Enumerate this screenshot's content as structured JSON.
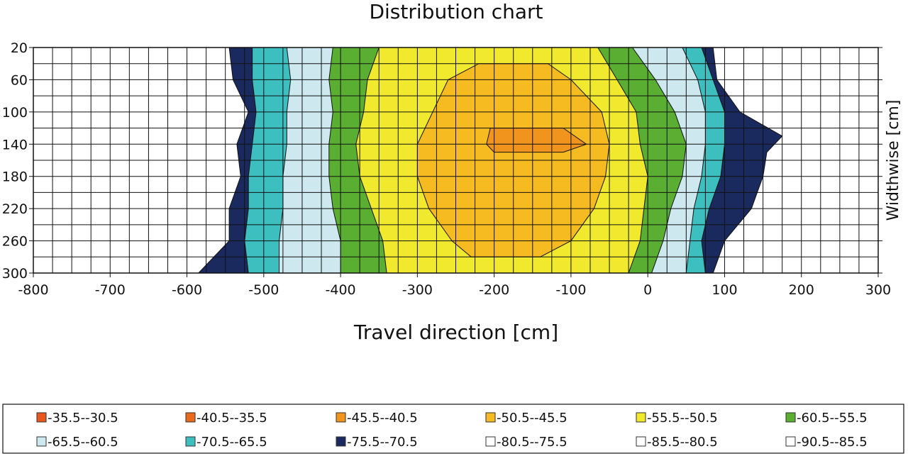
{
  "chart_data": {
    "type": "heatmap",
    "title": "Distribution chart",
    "xlabel": "Travel direction [cm]",
    "ylabel": "Widthwise [cm]",
    "xlim": [
      -800,
      300
    ],
    "ylim": [
      20,
      300
    ],
    "y_inverted": true,
    "grid": true,
    "x_ticks": [
      "-800",
      "-700",
      "-600",
      "-500",
      "-400",
      "-300",
      "-200",
      "-100",
      "0",
      "100",
      "200",
      "300"
    ],
    "y_ticks": [
      "20",
      "60",
      "100",
      "140",
      "180",
      "220",
      "260",
      "300"
    ],
    "x_tick_values": [
      -800,
      -700,
      -600,
      -500,
      -400,
      -300,
      -200,
      -100,
      0,
      100,
      200,
      300
    ],
    "y_tick_values": [
      20,
      60,
      100,
      140,
      180,
      220,
      260,
      300
    ],
    "bands": [
      {
        "label": "-90.5--85.5",
        "color": "#ffffff",
        "left": [
          [
            20,
            -800
          ],
          [
            300,
            -800
          ]
        ],
        "right": [
          [
            20,
            300
          ],
          [
            300,
            300
          ]
        ]
      },
      {
        "label": "-75.5--70.5",
        "color": "#1b2a5e",
        "left": [
          [
            20,
            -545
          ],
          [
            60,
            -540
          ],
          [
            100,
            -520
          ],
          [
            140,
            -535
          ],
          [
            180,
            -530
          ],
          [
            220,
            -545
          ],
          [
            260,
            -545
          ],
          [
            300,
            -585
          ]
        ],
        "right": [
          [
            20,
            85
          ],
          [
            60,
            90
          ],
          [
            100,
            120
          ],
          [
            130,
            175
          ],
          [
            150,
            155
          ],
          [
            180,
            150
          ],
          [
            220,
            135
          ],
          [
            260,
            100
          ],
          [
            300,
            85
          ]
        ]
      },
      {
        "label": "-70.5--65.5",
        "color": "#3dbfbf",
        "left": [
          [
            20,
            -515
          ],
          [
            60,
            -515
          ],
          [
            100,
            -510
          ],
          [
            140,
            -515
          ],
          [
            180,
            -520
          ],
          [
            220,
            -520
          ],
          [
            260,
            -525
          ],
          [
            300,
            -520
          ]
        ],
        "right": [
          [
            20,
            70
          ],
          [
            60,
            85
          ],
          [
            100,
            100
          ],
          [
            140,
            100
          ],
          [
            180,
            95
          ],
          [
            220,
            80
          ],
          [
            260,
            70
          ],
          [
            300,
            75
          ]
        ]
      },
      {
        "label": "-65.5--60.5",
        "color": "#cde9ef",
        "left": [
          [
            20,
            -470
          ],
          [
            60,
            -465
          ],
          [
            100,
            -470
          ],
          [
            140,
            -470
          ],
          [
            180,
            -475
          ],
          [
            220,
            -475
          ],
          [
            260,
            -480
          ],
          [
            300,
            -480
          ]
        ],
        "right": [
          [
            20,
            45
          ],
          [
            60,
            65
          ],
          [
            100,
            75
          ],
          [
            140,
            75
          ],
          [
            180,
            70
          ],
          [
            220,
            60
          ],
          [
            260,
            55
          ],
          [
            300,
            50
          ]
        ]
      },
      {
        "label": "-60.5--55.5",
        "color": "#5aae32",
        "left": [
          [
            20,
            -410
          ],
          [
            60,
            -415
          ],
          [
            100,
            -410
          ],
          [
            140,
            -415
          ],
          [
            180,
            -415
          ],
          [
            220,
            -410
          ],
          [
            260,
            -400
          ],
          [
            300,
            -400
          ]
        ],
        "right": [
          [
            20,
            -20
          ],
          [
            60,
            10
          ],
          [
            100,
            35
          ],
          [
            140,
            50
          ],
          [
            180,
            45
          ],
          [
            220,
            30
          ],
          [
            260,
            20
          ],
          [
            300,
            5
          ]
        ]
      },
      {
        "label": "-55.5--50.5",
        "color": "#f0e92e",
        "left": [
          [
            20,
            -350
          ],
          [
            60,
            -365
          ],
          [
            100,
            -370
          ],
          [
            140,
            -380
          ],
          [
            180,
            -375
          ],
          [
            220,
            -360
          ],
          [
            260,
            -345
          ],
          [
            300,
            -340
          ]
        ],
        "right": [
          [
            20,
            -65
          ],
          [
            60,
            -40
          ],
          [
            100,
            -15
          ],
          [
            140,
            -10
          ],
          [
            180,
            0
          ],
          [
            220,
            -5
          ],
          [
            260,
            -10
          ],
          [
            300,
            -25
          ]
        ]
      },
      {
        "label": "-50.5--45.5",
        "color": "#f6bb21",
        "left": [
          [
            40,
            -220
          ],
          [
            60,
            -260
          ],
          [
            100,
            -280
          ],
          [
            140,
            -300
          ],
          [
            180,
            -300
          ],
          [
            220,
            -285
          ],
          [
            260,
            -255
          ],
          [
            280,
            -230
          ]
        ],
        "right": [
          [
            40,
            -130
          ],
          [
            60,
            -100
          ],
          [
            100,
            -60
          ],
          [
            140,
            -50
          ],
          [
            180,
            -55
          ],
          [
            220,
            -70
          ],
          [
            260,
            -100
          ],
          [
            280,
            -140
          ]
        ]
      },
      {
        "label": "-45.5--40.5",
        "color": "#f0941e",
        "left": [
          [
            120,
            -205
          ],
          [
            140,
            -210
          ],
          [
            150,
            -200
          ]
        ],
        "right": [
          [
            120,
            -110
          ],
          [
            140,
            -80
          ],
          [
            150,
            -110
          ]
        ]
      }
    ],
    "legend": [
      {
        "label": "-35.5--30.5",
        "color": "#e8581e"
      },
      {
        "label": "-40.5--35.5",
        "color": "#ea6a1b"
      },
      {
        "label": "-45.5--40.5",
        "color": "#f0941e"
      },
      {
        "label": "-50.5--45.5",
        "color": "#f6bb21"
      },
      {
        "label": "-55.5--50.5",
        "color": "#f0e92e"
      },
      {
        "label": "-60.5--55.5",
        "color": "#5aae32"
      },
      {
        "label": "-65.5--60.5",
        "color": "#cde9ef"
      },
      {
        "label": "-70.5--65.5",
        "color": "#3dbfbf"
      },
      {
        "label": "-75.5--70.5",
        "color": "#1b2a5e"
      },
      {
        "label": "-80.5--75.5",
        "color": "#ffffff"
      },
      {
        "label": "-85.5--80.5",
        "color": "#ffffff"
      },
      {
        "label": "-90.5--85.5",
        "color": "#ffffff"
      }
    ],
    "legend_position": "bottom"
  }
}
